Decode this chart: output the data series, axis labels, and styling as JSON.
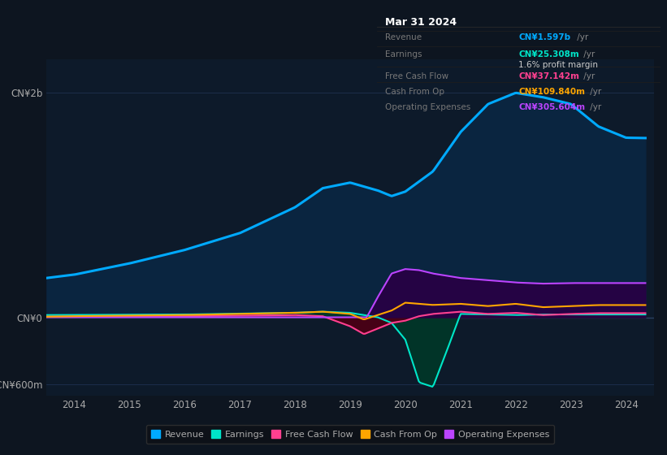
{
  "background_color": "#0d1520",
  "plot_bg_color": "#0d1a2a",
  "ylim": [
    -700,
    2300
  ],
  "yticks": [
    -600,
    0,
    2000
  ],
  "ytick_labels": [
    "-CN¥600m",
    "CN¥0",
    "CN¥2b"
  ],
  "xlim": [
    2013.5,
    2024.5
  ],
  "xticks": [
    2014,
    2015,
    2016,
    2017,
    2018,
    2019,
    2020,
    2021,
    2022,
    2023,
    2024
  ],
  "series": {
    "Revenue": {
      "color": "#00aaff",
      "fill_color": "#0a2a4a",
      "lw": 2.2
    },
    "Earnings": {
      "color": "#00e5c8",
      "fill_color": "#003830",
      "lw": 1.5
    },
    "FreeCashFlow": {
      "color": "#ff4090",
      "fill_color": "#5a0020",
      "lw": 1.5
    },
    "CashFromOp": {
      "color": "#ffa500",
      "lw": 1.5
    },
    "OperatingExpenses": {
      "color": "#bb44ff",
      "fill_color": "#280045",
      "lw": 1.5
    }
  },
  "legend": [
    {
      "label": "Revenue",
      "color": "#00aaff"
    },
    {
      "label": "Earnings",
      "color": "#00e5c8"
    },
    {
      "label": "Free Cash Flow",
      "color": "#ff4090"
    },
    {
      "label": "Cash From Op",
      "color": "#ffa500"
    },
    {
      "label": "Operating Expenses",
      "color": "#bb44ff"
    }
  ],
  "grid_color": "#1e3050",
  "text_color": "#aaaaaa",
  "info_title": "Mar 31 2024",
  "info_rows": [
    {
      "label": "Revenue",
      "value": "CN¥1.597b /yr",
      "vcolor": "#00aaff"
    },
    {
      "label": "Earnings",
      "value": "CN¥25.308m /yr",
      "vcolor": "#00e5c8"
    },
    {
      "label": "",
      "value": "1.6% profit margin",
      "vcolor": "#cccccc"
    },
    {
      "label": "Free Cash Flow",
      "value": "CN¥37.142m /yr",
      "vcolor": "#ff4090"
    },
    {
      "label": "Cash From Op",
      "value": "CN¥109.840m /yr",
      "vcolor": "#ffa500"
    },
    {
      "label": "Operating Expenses",
      "value": "CN¥305.604m /yr",
      "vcolor": "#bb44ff"
    }
  ]
}
